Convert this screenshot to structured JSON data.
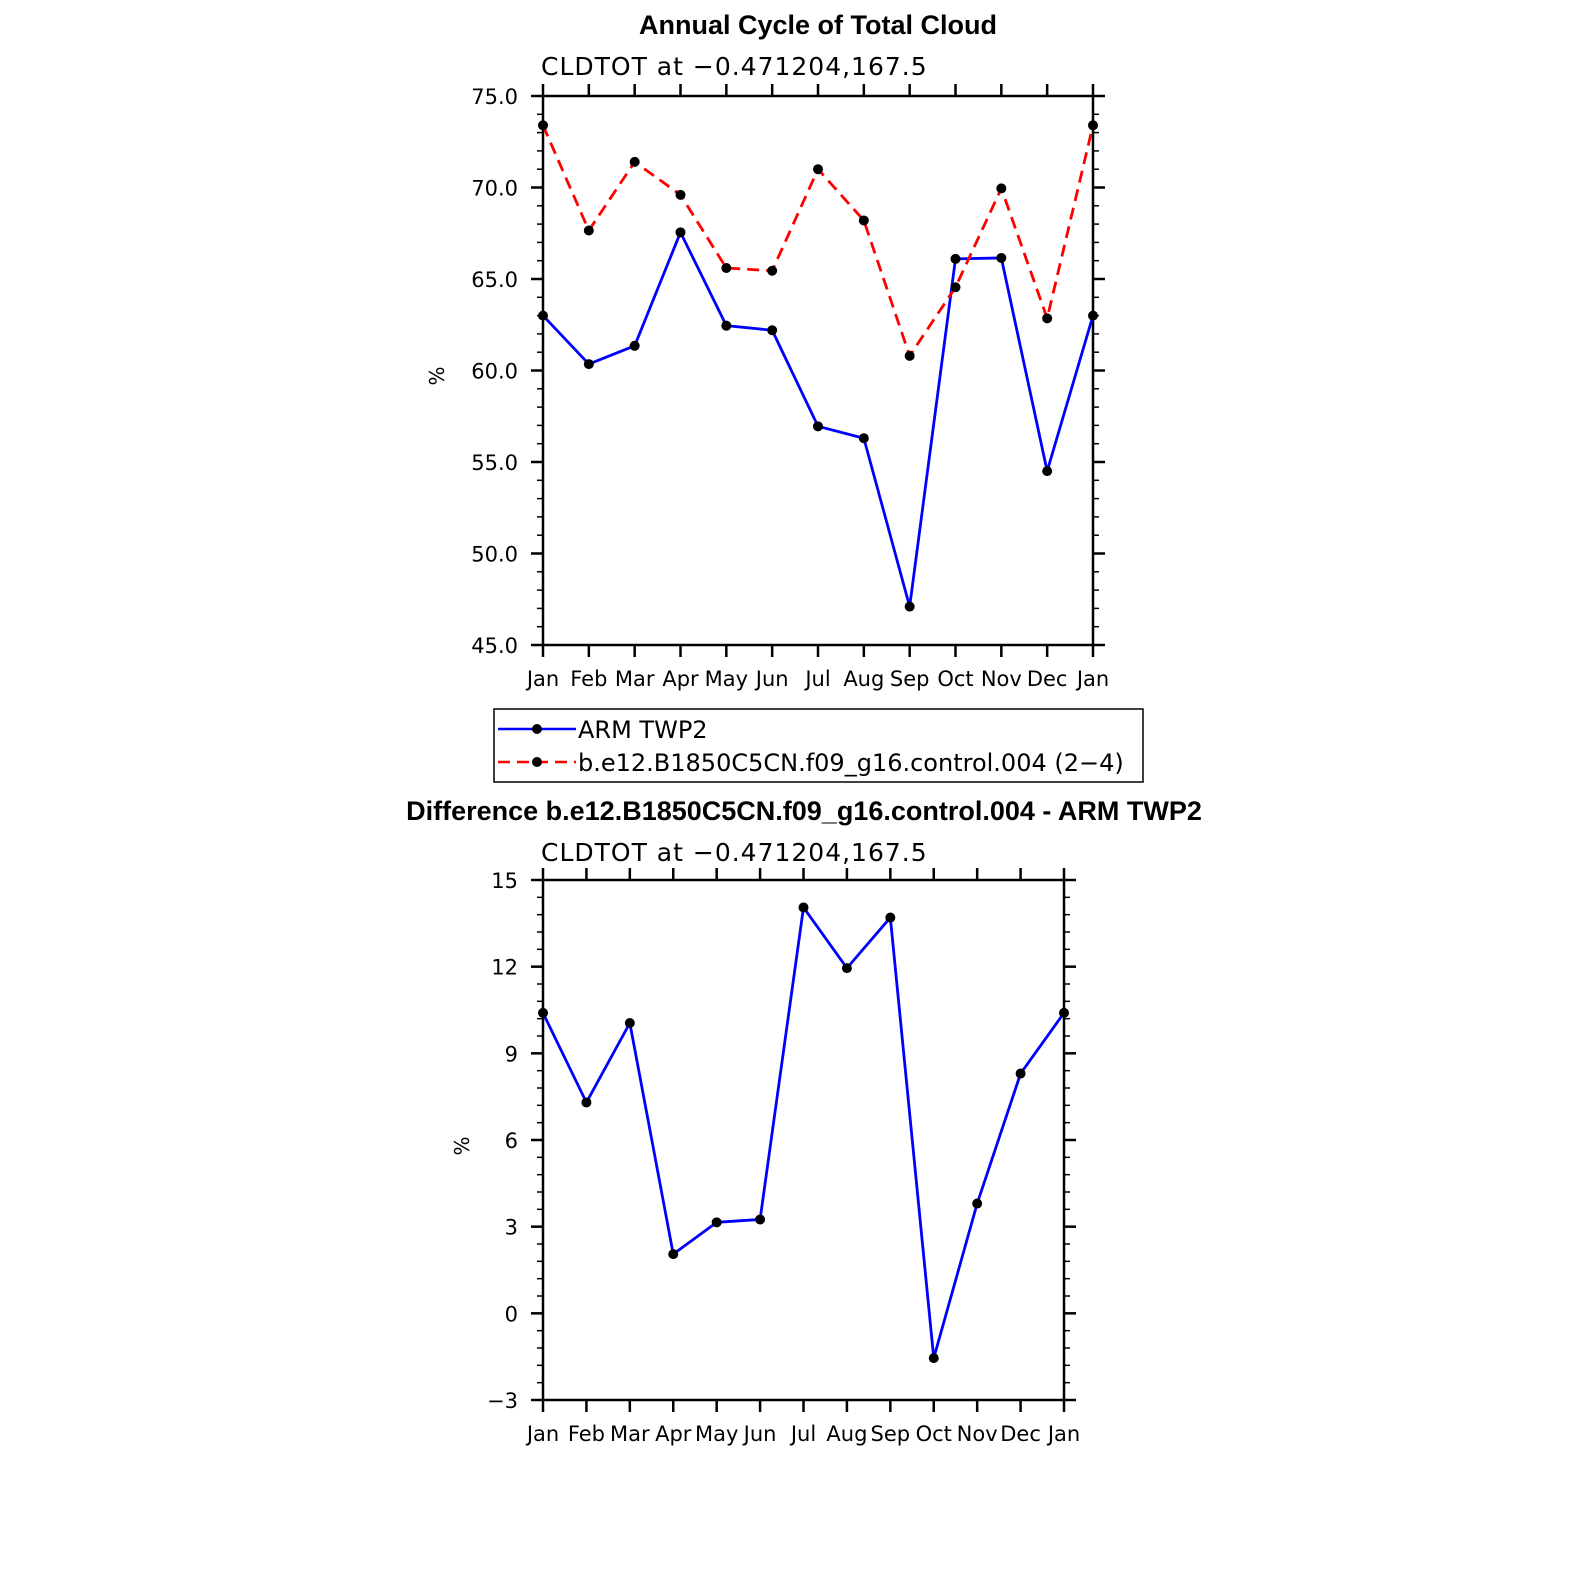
{
  "chart_data": [
    {
      "type": "line",
      "title": "Annual Cycle of Total Cloud",
      "subtitle": "CLDTOT at −0.471204,167.5",
      "ylabel": "%",
      "ylim": [
        45,
        75
      ],
      "yticks": [
        "45.0",
        "50.0",
        "55.0",
        "60.0",
        "65.0",
        "70.0",
        "75.0"
      ],
      "categories": [
        "Jan",
        "Feb",
        "Mar",
        "Apr",
        "May",
        "Jun",
        "Jul",
        "Aug",
        "Sep",
        "Oct",
        "Nov",
        "Dec",
        "Jan"
      ],
      "series": [
        {
          "name": "ARM  TWP2",
          "color": "#0000ff",
          "dash": "solid",
          "values": [
            63.0,
            60.35,
            61.35,
            67.55,
            62.45,
            62.2,
            56.95,
            56.3,
            47.1,
            66.1,
            66.15,
            54.5,
            63.0
          ]
        },
        {
          "name": "b.e12.B1850C5CN.f09_g16.control.004 (2−4)",
          "color": "#ff0000",
          "dash": "dashed",
          "values": [
            73.4,
            67.65,
            71.4,
            69.6,
            65.6,
            65.45,
            71.0,
            68.2,
            60.8,
            64.55,
            69.95,
            62.85,
            73.4
          ]
        }
      ],
      "legend_position": "below"
    },
    {
      "type": "line",
      "title": "Difference b.e12.B1850C5CN.f09_g16.control.004 - ARM TWP2",
      "subtitle": "CLDTOT at −0.471204,167.5",
      "ylabel": "%",
      "ylim": [
        -3,
        15
      ],
      "yticks": [
        "−3",
        "0",
        "3",
        "6",
        "9",
        "12",
        "15"
      ],
      "categories": [
        "Jan",
        "Feb",
        "Mar",
        "Apr",
        "May",
        "Jun",
        "Jul",
        "Aug",
        "Sep",
        "Oct",
        "Nov",
        "Dec",
        "Jan"
      ],
      "series": [
        {
          "name": "Difference",
          "color": "#0000ff",
          "dash": "solid",
          "values": [
            10.4,
            7.3,
            10.05,
            2.05,
            3.15,
            3.25,
            14.05,
            11.95,
            13.7,
            -1.55,
            3.8,
            8.3,
            10.4
          ]
        }
      ]
    }
  ]
}
